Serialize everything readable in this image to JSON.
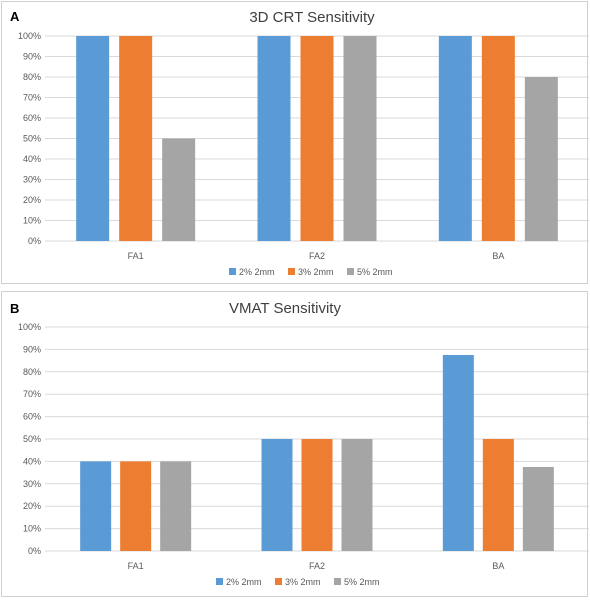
{
  "colors": {
    "s1": "#5b9bd5",
    "s2": "#ed7d31",
    "s3": "#a5a5a5"
  },
  "chart_data": [
    {
      "type": "bar",
      "panel_label": "A",
      "title": "3D CRT Sensitivity",
      "categories": [
        "FA1",
        "FA2",
        "BA"
      ],
      "series": [
        {
          "name": "2% 2mm",
          "values": [
            100,
            100,
            100
          ]
        },
        {
          "name": "3% 2mm",
          "values": [
            100,
            100,
            100
          ]
        },
        {
          "name": "5% 2mm",
          "values": [
            50,
            100,
            80
          ]
        }
      ],
      "ylim": [
        0,
        100
      ],
      "yticks": [
        "0%",
        "10%",
        "20%",
        "30%",
        "40%",
        "50%",
        "60%",
        "70%",
        "80%",
        "90%",
        "100%"
      ],
      "grid": true,
      "legend": "bottom"
    },
    {
      "type": "bar",
      "panel_label": "B",
      "title": "VMAT Sensitivity",
      "categories": [
        "FA1",
        "FA2",
        "BA"
      ],
      "series": [
        {
          "name": "2% 2mm",
          "values": [
            40,
            50,
            87.5
          ]
        },
        {
          "name": "3% 2mm",
          "values": [
            40,
            50,
            50
          ]
        },
        {
          "name": "5% 2mm",
          "values": [
            40,
            50,
            37.5
          ]
        }
      ],
      "ylim": [
        0,
        100
      ],
      "yticks": [
        "0%",
        "10%",
        "20%",
        "30%",
        "40%",
        "50%",
        "60%",
        "70%",
        "80%",
        "90%",
        "100%"
      ],
      "grid": true,
      "legend": "bottom"
    }
  ]
}
